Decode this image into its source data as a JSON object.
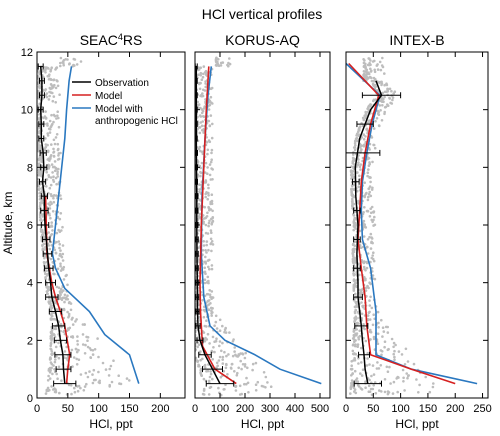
{
  "figure": {
    "title": "HCl vertical profiles",
    "ylabel": "Altitude, km"
  },
  "legend": {
    "placement": "top-left of first panel",
    "entries": [
      {
        "label": "Observation",
        "color": "#000000"
      },
      {
        "label": "Model",
        "color": "#d62020"
      },
      {
        "label": "Model with anthropogenic HCl",
        "color": "#2a78c0"
      }
    ]
  },
  "colors": {
    "observation": "#000000",
    "model": "#d62020",
    "model_anthro": "#2a78c0",
    "samples": "#bdbdbd"
  },
  "chart_data": [
    {
      "type": "line",
      "title": "SEAC⁴RS",
      "title_main": "SEAC",
      "title_sup": "4",
      "title_tail": "RS",
      "xlabel": "HCl, ppt",
      "xlim": [
        0,
        240
      ],
      "xticks": [
        0,
        50,
        100,
        150,
        200
      ],
      "ylim": [
        0,
        12
      ],
      "yticks": [
        0,
        2,
        4,
        6,
        8,
        10,
        12
      ],
      "series": [
        {
          "name": "Observation",
          "color": "#000000",
          "points": [
            [
              45,
              0.5
            ],
            [
              43,
              1.0
            ],
            [
              42,
              1.5
            ],
            [
              38,
              2.0
            ],
            [
              35,
              2.5
            ],
            [
              30,
              3.0
            ],
            [
              24,
              3.5
            ],
            [
              22,
              4.0
            ],
            [
              19,
              4.5
            ],
            [
              17,
              5.0
            ],
            [
              15,
              5.5
            ],
            [
              13,
              6.0
            ],
            [
              12,
              6.5
            ],
            [
              12,
              7.0
            ],
            [
              9,
              7.5
            ],
            [
              11,
              8.0
            ],
            [
              10,
              8.5
            ],
            [
              7,
              9.0
            ],
            [
              7,
              9.5
            ],
            [
              6,
              10.0
            ],
            [
              8,
              10.5
            ],
            [
              8,
              11.0
            ],
            [
              6,
              11.5
            ]
          ]
        },
        {
          "name": "Model",
          "color": "#d62020",
          "points": [
            [
              48,
              0.5
            ],
            [
              50,
              1.0
            ],
            [
              53,
              1.5
            ],
            [
              49,
              2.0
            ],
            [
              45,
              2.5
            ],
            [
              38,
              3.0
            ],
            [
              30,
              3.5
            ],
            [
              24,
              4.0
            ],
            [
              20,
              4.5
            ],
            [
              16,
              5.0
            ],
            [
              15,
              6.0
            ],
            [
              14,
              7.0
            ]
          ]
        },
        {
          "name": "Model with anthropogenic HCl",
          "color": "#2a78c0",
          "points": [
            [
              165,
              0.5
            ],
            [
              150,
              1.5
            ],
            [
              110,
              2.2
            ],
            [
              85,
              3.0
            ],
            [
              45,
              3.8
            ],
            [
              30,
              4.5
            ],
            [
              25,
              5.0
            ],
            [
              30,
              6.0
            ],
            [
              35,
              7.0
            ],
            [
              40,
              8.0
            ],
            [
              45,
              9.0
            ],
            [
              48,
              10.0
            ],
            [
              52,
              11.0
            ],
            [
              56,
              11.5
            ]
          ]
        }
      ],
      "error_bars": [
        {
          "y": 0.5,
          "x": 45,
          "err": 18
        },
        {
          "y": 1.0,
          "x": 43,
          "err": 12
        },
        {
          "y": 1.5,
          "x": 42,
          "err": 13
        },
        {
          "y": 2.0,
          "x": 38,
          "err": 10
        },
        {
          "y": 2.5,
          "x": 35,
          "err": 10
        },
        {
          "y": 3.0,
          "x": 30,
          "err": 10
        },
        {
          "y": 3.5,
          "x": 24,
          "err": 10
        },
        {
          "y": 4.0,
          "x": 22,
          "err": 8
        },
        {
          "y": 4.5,
          "x": 19,
          "err": 7
        },
        {
          "y": 5.0,
          "x": 17,
          "err": 7
        },
        {
          "y": 5.5,
          "x": 15,
          "err": 6
        },
        {
          "y": 6.0,
          "x": 13,
          "err": 6
        },
        {
          "y": 6.5,
          "x": 12,
          "err": 6
        },
        {
          "y": 7.0,
          "x": 12,
          "err": 5
        },
        {
          "y": 7.5,
          "x": 9,
          "err": 5
        },
        {
          "y": 8.0,
          "x": 11,
          "err": 5
        },
        {
          "y": 8.5,
          "x": 10,
          "err": 5
        },
        {
          "y": 9.0,
          "x": 7,
          "err": 4
        },
        {
          "y": 9.5,
          "x": 7,
          "err": 4
        },
        {
          "y": 10.0,
          "x": 6,
          "err": 4
        },
        {
          "y": 10.5,
          "x": 8,
          "err": 4
        },
        {
          "y": 11.0,
          "x": 8,
          "err": 4
        },
        {
          "y": 11.5,
          "x": 6,
          "err": 4
        }
      ]
    },
    {
      "type": "line",
      "title": "KORUS-AQ",
      "xlabel": "HCl, ppt",
      "xlim": [
        0,
        540
      ],
      "xticks": [
        0,
        100,
        200,
        300,
        400,
        500
      ],
      "ylim": [
        0,
        12
      ],
      "yticks": [
        0,
        2,
        4,
        6,
        8,
        10,
        12
      ],
      "series": [
        {
          "name": "Observation",
          "color": "#000000",
          "points": [
            [
              100,
              0.5
            ],
            [
              70,
              1.0
            ],
            [
              40,
              1.5
            ],
            [
              20,
              2.0
            ],
            [
              12,
              2.5
            ],
            [
              10,
              3.0
            ],
            [
              9,
              4.0
            ],
            [
              8,
              5.0
            ],
            [
              7,
              6.0
            ],
            [
              7,
              7.0
            ],
            [
              6,
              8.0
            ],
            [
              5,
              9.0
            ],
            [
              5,
              10.0
            ],
            [
              5,
              11.0
            ],
            [
              5,
              11.5
            ]
          ]
        },
        {
          "name": "Model",
          "color": "#d62020",
          "points": [
            [
              165,
              0.5
            ],
            [
              80,
              1.0
            ],
            [
              30,
              1.8
            ],
            [
              22,
              3.0
            ],
            [
              20,
              4.0
            ],
            [
              25,
              6.0
            ],
            [
              35,
              8.0
            ],
            [
              45,
              10.0
            ],
            [
              55,
              11.5
            ]
          ]
        },
        {
          "name": "Model with anthropogenic HCl",
          "color": "#2a78c0",
          "points": [
            [
              505,
              0.5
            ],
            [
              340,
              1.0
            ],
            [
              240,
              1.5
            ],
            [
              120,
              2.0
            ],
            [
              60,
              2.5
            ],
            [
              35,
              3.5
            ],
            [
              25,
              5.0
            ],
            [
              28,
              7.0
            ],
            [
              40,
              9.0
            ],
            [
              52,
              10.5
            ],
            [
              65,
              11.5
            ]
          ]
        }
      ],
      "error_bars": [
        {
          "y": 0.5,
          "x": 100,
          "err": 55
        },
        {
          "y": 1.0,
          "x": 70,
          "err": 40
        },
        {
          "y": 1.5,
          "x": 40,
          "err": 25
        },
        {
          "y": 2.0,
          "x": 20,
          "err": 12
        },
        {
          "y": 2.5,
          "x": 12,
          "err": 8
        },
        {
          "y": 3.0,
          "x": 10,
          "err": 6
        },
        {
          "y": 3.5,
          "x": 9,
          "err": 6
        },
        {
          "y": 4.0,
          "x": 9,
          "err": 6
        },
        {
          "y": 4.5,
          "x": 8,
          "err": 5
        },
        {
          "y": 5.0,
          "x": 8,
          "err": 5
        },
        {
          "y": 5.5,
          "x": 8,
          "err": 5
        },
        {
          "y": 6.0,
          "x": 7,
          "err": 5
        },
        {
          "y": 6.5,
          "x": 7,
          "err": 5
        },
        {
          "y": 7.0,
          "x": 7,
          "err": 5
        },
        {
          "y": 7.5,
          "x": 6,
          "err": 4
        },
        {
          "y": 8.0,
          "x": 6,
          "err": 4
        },
        {
          "y": 8.5,
          "x": 6,
          "err": 4
        },
        {
          "y": 9.0,
          "x": 5,
          "err": 4
        },
        {
          "y": 9.5,
          "x": 5,
          "err": 4
        },
        {
          "y": 10.0,
          "x": 5,
          "err": 4
        },
        {
          "y": 10.5,
          "x": 5,
          "err": 4
        },
        {
          "y": 11.0,
          "x": 5,
          "err": 4
        },
        {
          "y": 11.5,
          "x": 5,
          "err": 4
        }
      ]
    },
    {
      "type": "line",
      "title": "INTEX-B",
      "xlabel": "HCl, ppt",
      "xlim": [
        0,
        260
      ],
      "xticks": [
        0,
        50,
        100,
        150,
        200,
        250
      ],
      "ylim": [
        0,
        12
      ],
      "yticks": [
        0,
        2,
        4,
        6,
        8,
        10,
        12
      ],
      "series": [
        {
          "name": "Observation",
          "color": "#000000",
          "points": [
            [
              40,
              0.5
            ],
            [
              35,
              1.0
            ],
            [
              33,
              1.5
            ],
            [
              30,
              2.0
            ],
            [
              28,
              2.5
            ],
            [
              25,
              3.0
            ],
            [
              22,
              3.5
            ],
            [
              22,
              4.0
            ],
            [
              20,
              5.0
            ],
            [
              22,
              6.0
            ],
            [
              18,
              7.0
            ],
            [
              17,
              8.0
            ],
            [
              25,
              9.0
            ],
            [
              35,
              9.5
            ],
            [
              45,
              10.0
            ],
            [
              65,
              10.5
            ],
            [
              55,
              11.0
            ]
          ]
        },
        {
          "name": "Model",
          "color": "#d62020",
          "points": [
            [
              200,
              0.5
            ],
            [
              120,
              1.0
            ],
            [
              45,
              1.5
            ],
            [
              38,
              2.5
            ],
            [
              35,
              3.5
            ],
            [
              28,
              4.5
            ],
            [
              22,
              5.5
            ],
            [
              25,
              6.5
            ],
            [
              28,
              7.5
            ],
            [
              35,
              8.5
            ],
            [
              45,
              9.5
            ],
            [
              60,
              10.5
            ],
            [
              5,
              11.6
            ]
          ]
        },
        {
          "name": "Model with anthropogenic HCl",
          "color": "#2a78c0",
          "points": [
            [
              240,
              0.5
            ],
            [
              120,
              1.0
            ],
            [
              55,
              1.5
            ],
            [
              55,
              3.0
            ],
            [
              45,
              4.5
            ],
            [
              30,
              5.5
            ],
            [
              28,
              6.5
            ],
            [
              30,
              7.5
            ],
            [
              38,
              8.5
            ],
            [
              48,
              9.5
            ],
            [
              62,
              10.5
            ],
            [
              0,
              11.6
            ]
          ]
        }
      ],
      "error_bars": [
        {
          "y": 0.5,
          "x": 40,
          "err": 25
        },
        {
          "y": 1.5,
          "x": 33,
          "err": 10
        },
        {
          "y": 2.5,
          "x": 28,
          "err": 12
        },
        {
          "y": 3.5,
          "x": 22,
          "err": 8
        },
        {
          "y": 4.5,
          "x": 20,
          "err": 6
        },
        {
          "y": 5.5,
          "x": 20,
          "err": 6
        },
        {
          "y": 6.5,
          "x": 20,
          "err": 6
        },
        {
          "y": 7.5,
          "x": 18,
          "err": 6
        },
        {
          "y": 8.5,
          "x": 22,
          "err": 40
        },
        {
          "y": 9.5,
          "x": 35,
          "err": 15
        },
        {
          "y": 10.5,
          "x": 65,
          "err": 35
        }
      ]
    }
  ]
}
